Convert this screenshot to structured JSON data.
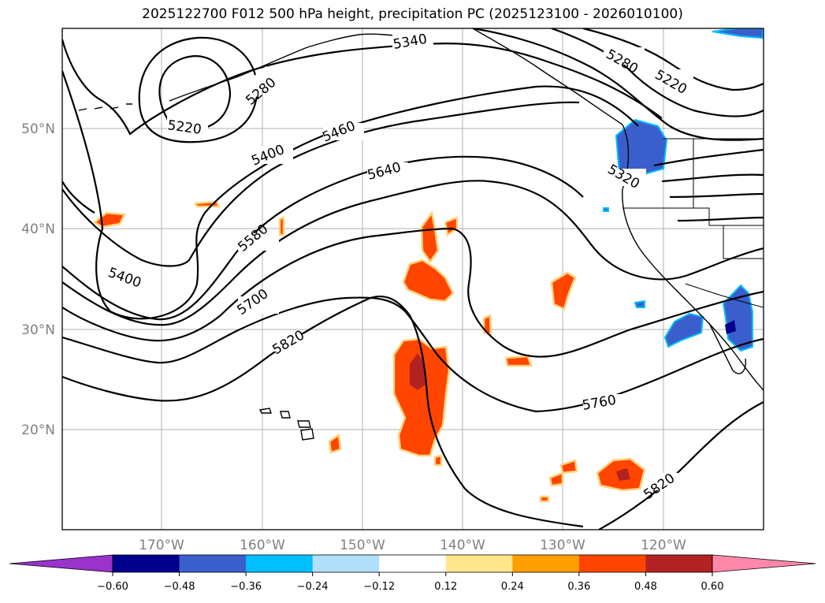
{
  "title": "2025122700 F012 500 hPa height, precipitation PC (2025123100 - 2026010100)",
  "lat_labels": [
    "50°N",
    "40°N",
    "30°N",
    "20°N"
  ],
  "lon_labels": [
    "170°W",
    "160°W",
    "150°W",
    "140°W",
    "130°W",
    "120°W"
  ],
  "contour_labels": [
    "5340",
    "5280",
    "5220",
    "5280",
    "5220",
    "5460",
    "5400",
    "5640",
    "5580",
    "5400",
    "5320",
    "5700",
    "5820",
    "5760",
    "5820"
  ],
  "colorbar": {
    "colors": [
      "#9933cc",
      "#00008b",
      "#3a5fcd",
      "#00bfff",
      "#b0e0fa",
      "#ffffff",
      "#ffe88c",
      "#ff9f00",
      "#ff4500",
      "#b22222",
      "#ff88aa"
    ],
    "ticks": [
      "−0.60",
      "−0.48",
      "−0.36",
      "−0.24",
      "−0.12",
      "0.12",
      "0.24",
      "0.36",
      "0.48",
      "0.60"
    ]
  }
}
